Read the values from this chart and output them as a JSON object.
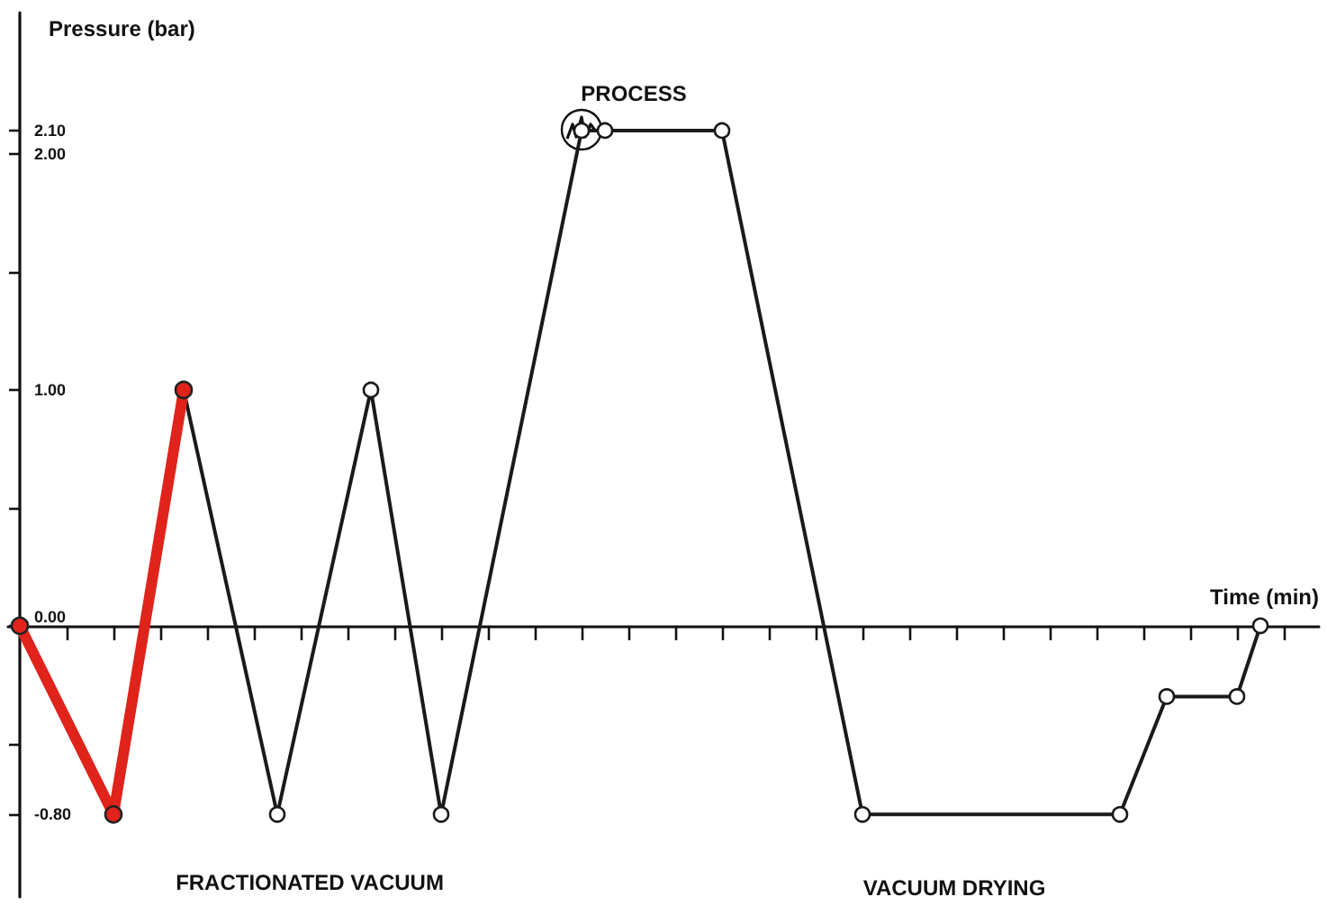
{
  "chart_data": {
    "type": "line",
    "ylabel": "Pressure (bar)",
    "xlabel": "Time (min)",
    "annotations": [
      "PROCESS",
      "FRACTIONATED VACUUM",
      "VACUUM DRYING"
    ],
    "categories": [
      null,
      null,
      null,
      null,
      null,
      null,
      null,
      null,
      null,
      null,
      null,
      null,
      null,
      null,
      null,
      null,
      null,
      null,
      null,
      null,
      null,
      null,
      null,
      null,
      null,
      null,
      null,
      null,
      null,
      null,
      null,
      null,
      null,
      null,
      null,
      null,
      null,
      null,
      null,
      null,
      null,
      null,
      null,
      null,
      null,
      null,
      null,
      null,
      null,
      null,
      null,
      null,
      null,
      null,
      null,
      null
    ],
    "ylim": [
      -1.15,
      2.6
    ],
    "yticks": [
      {
        "value": -0.8,
        "label": "-0.80"
      },
      {
        "value": -0.5,
        "label": null
      },
      {
        "value": 0,
        "label": "0.00"
      },
      {
        "value": 0.5,
        "label": null
      },
      {
        "value": 1,
        "label": "1.00"
      },
      {
        "value": 1.5,
        "label": null
      },
      {
        "value": 2,
        "label": "2.00"
      },
      {
        "value": 2.1,
        "label": "2.10"
      }
    ],
    "tick_labels": "y",
    "marker": "circle",
    "line_style": "solid",
    "series": [
      {
        "color": "#e0231b",
        "values": [
          0,
          null,
          null,
          null,
          -0.8,
          null,
          null,
          1,
          null,
          null,
          null,
          null,
          null,
          null,
          null,
          null,
          null,
          null,
          null,
          null,
          null,
          null,
          null,
          null,
          null,
          null,
          null,
          null,
          null,
          null,
          null,
          null,
          null,
          null,
          null,
          null,
          null,
          null,
          null,
          null,
          null,
          null,
          null,
          null,
          null,
          null,
          null,
          null,
          null,
          null,
          null,
          null,
          null,
          null,
          null,
          null
        ]
      },
      {
        "color": "#1a1a1a",
        "values": [
          null,
          null,
          null,
          null,
          null,
          null,
          null,
          1,
          null,
          null,
          null,
          -0.8,
          null,
          null,
          null,
          1,
          null,
          null,
          -0.8,
          null,
          null,
          null,
          null,
          null,
          2.1,
          2.1,
          null,
          null,
          null,
          null,
          2.1,
          null,
          null,
          null,
          null,
          null,
          -0.8,
          null,
          null,
          null,
          null,
          null,
          null,
          null,
          null,
          null,
          null,
          -0.8,
          null,
          -0.3,
          null,
          null,
          -0.3,
          0,
          null,
          null
        ]
      }
    ]
  }
}
